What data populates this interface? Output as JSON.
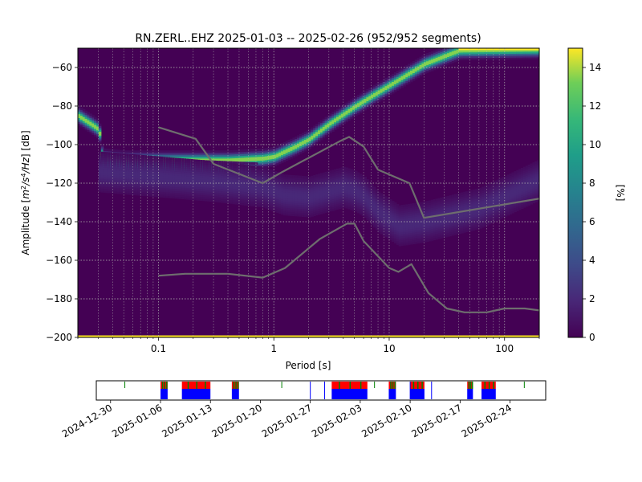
{
  "chart_data": [
    {
      "type": "heatmap",
      "title": "RN.ZERL..EHZ   2025-01-03 -- 2025-02-26  (952/952 segments)",
      "xlabel": "Period [s]",
      "ylabel_parts": [
        "Amplitude [",
        "m",
        "2",
        "/",
        "s",
        "4",
        "/",
        "Hz",
        "] [dB]"
      ],
      "x_scale": "log",
      "xlim": [
        0.02,
        200
      ],
      "ylim": [
        -200,
        -50
      ],
      "x_ticks": [
        {
          "value": 0.1,
          "label": "0.1"
        },
        {
          "value": 1,
          "label": "1"
        },
        {
          "value": 10,
          "label": "10"
        },
        {
          "value": 100,
          "label": "100"
        }
      ],
      "y_ticks": [
        {
          "value": -60,
          "label": "−60"
        },
        {
          "value": -80,
          "label": "−80"
        },
        {
          "value": -100,
          "label": "−100"
        },
        {
          "value": -120,
          "label": "−120"
        },
        {
          "value": -140,
          "label": "−140"
        },
        {
          "value": -160,
          "label": "−160"
        },
        {
          "value": -180,
          "label": "−180"
        },
        {
          "value": -200,
          "label": "−200"
        }
      ],
      "grid": true,
      "colormap": "viridis",
      "colorbar": {
        "label": "[%]",
        "range": [
          0,
          15
        ],
        "ticks": [
          {
            "value": 0,
            "label": "0"
          },
          {
            "value": 2,
            "label": "2"
          },
          {
            "value": 4,
            "label": "4"
          },
          {
            "value": 6,
            "label": "6"
          },
          {
            "value": 8,
            "label": "8"
          },
          {
            "value": 10,
            "label": "10"
          },
          {
            "value": 12,
            "label": "12"
          },
          {
            "value": 14,
            "label": "14"
          }
        ]
      },
      "density_ridges": [
        {
          "points": [
            [
              0.02,
              -85
            ],
            [
              0.03,
              -92
            ],
            [
              0.032,
              -107
            ],
            [
              0.05,
              -108
            ],
            [
              0.1,
              -108
            ],
            [
              0.2,
              -108
            ],
            [
              0.4,
              -108
            ],
            [
              0.8,
              -107
            ],
            [
              1.0,
              -106
            ],
            [
              1.5,
              -101
            ],
            [
              2,
              -97
            ],
            [
              3,
              -89
            ],
            [
              5,
              -80
            ],
            [
              10,
              -69
            ],
            [
              20,
              -58
            ],
            [
              40,
              -51
            ],
            [
              200,
              -50.5
            ]
          ],
          "peak_percent": 14
        },
        {
          "points": [
            [
              0.032,
              -110
            ],
            [
              0.1,
              -111
            ],
            [
              0.3,
              -112
            ],
            [
              0.7,
              -113
            ]
          ],
          "peak_percent": 9
        },
        {
          "points": [
            [
              0.03,
              -114
            ],
            [
              0.3,
              -119
            ],
            [
              0.8,
              -122
            ],
            [
              1.2,
              -126
            ],
            [
              2,
              -127
            ],
            [
              3,
              -124
            ],
            [
              4,
              -122
            ],
            [
              5,
              -124
            ],
            [
              6,
              -127
            ],
            [
              8,
              -135
            ],
            [
              12,
              -142
            ],
            [
              20,
              -140
            ],
            [
              60,
              -133
            ],
            [
              200,
              -118
            ]
          ],
          "peak_percent": 2
        }
      ],
      "noise_models": [
        {
          "points": [
            [
              0.1,
              -91
            ],
            [
              0.21,
              -97
            ],
            [
              0.3,
              -110
            ],
            [
              0.8,
              -120
            ],
            [
              1.2,
              -114
            ],
            [
              3.8,
              -98
            ],
            [
              4.5,
              -96
            ],
            [
              6,
              -101
            ],
            [
              8,
              -113
            ],
            [
              15,
              -120
            ],
            [
              20,
              -138
            ],
            [
              200,
              -128
            ]
          ]
        },
        {
          "points": [
            [
              0.1,
              -168
            ],
            [
              0.17,
              -167
            ],
            [
              0.4,
              -167
            ],
            [
              0.8,
              -169
            ],
            [
              1.25,
              -164
            ],
            [
              2.5,
              -149
            ],
            [
              4.3,
              -141
            ],
            [
              5,
              -141
            ],
            [
              6,
              -150
            ],
            [
              10,
              -164
            ],
            [
              12,
              -166
            ],
            [
              15.6,
              -162
            ],
            [
              21.9,
              -177
            ],
            [
              31.6,
              -185
            ],
            [
              45,
              -187
            ],
            [
              70,
              -187
            ],
            [
              100,
              -185
            ],
            [
              150,
              -185
            ],
            [
              200,
              -186
            ]
          ]
        }
      ]
    },
    {
      "type": "timeline",
      "x_type": "date",
      "xlim": [
        "2024-12-28",
        "2025-03-01"
      ],
      "x_ticks": [
        {
          "value": "2024-12-30",
          "label": "2024-12-30"
        },
        {
          "value": "2025-01-06",
          "label": "2025-01-06"
        },
        {
          "value": "2025-01-13",
          "label": "2025-01-13"
        },
        {
          "value": "2025-01-20",
          "label": "2025-01-20"
        },
        {
          "value": "2025-01-27",
          "label": "2025-01-27"
        },
        {
          "value": "2025-02-03",
          "label": "2025-02-03"
        },
        {
          "value": "2025-02-10",
          "label": "2025-02-10"
        },
        {
          "value": "2025-02-17",
          "label": "2025-02-17"
        },
        {
          "value": "2025-02-24",
          "label": "2025-02-24"
        }
      ],
      "colors": {
        "used": "#0000ff",
        "gap": "#ff0000",
        "overlap": "#008000"
      },
      "coverage_blocks": [
        {
          "start": "2025-01-06",
          "end": "2025-01-07"
        },
        {
          "start": "2025-01-09",
          "end": "2025-01-13"
        },
        {
          "start": "2025-01-16",
          "end": "2025-01-17"
        },
        {
          "start": "2025-01-30",
          "end": "2025-02-04"
        },
        {
          "start": "2025-02-07",
          "end": "2025-02-08"
        },
        {
          "start": "2025-02-10",
          "end": "2025-02-12"
        },
        {
          "start": "2025-02-18",
          "end": "2025-02-18.8"
        },
        {
          "start": "2025-02-20",
          "end": "2025-02-22"
        }
      ],
      "markers": [
        {
          "date": "2025-01-01",
          "color": "#008000"
        },
        {
          "date": "2025-01-23",
          "color": "#008000"
        },
        {
          "date": "2025-01-27",
          "color": "#0000ff"
        },
        {
          "date": "2025-01-29",
          "color": "#0000ff"
        },
        {
          "date": "2025-02-05",
          "color": "#008000"
        },
        {
          "date": "2025-02-10",
          "color": "#0000ff"
        },
        {
          "date": "2025-02-13",
          "color": "#0000ff"
        },
        {
          "date": "2025-02-26",
          "color": "#008000"
        }
      ]
    }
  ]
}
